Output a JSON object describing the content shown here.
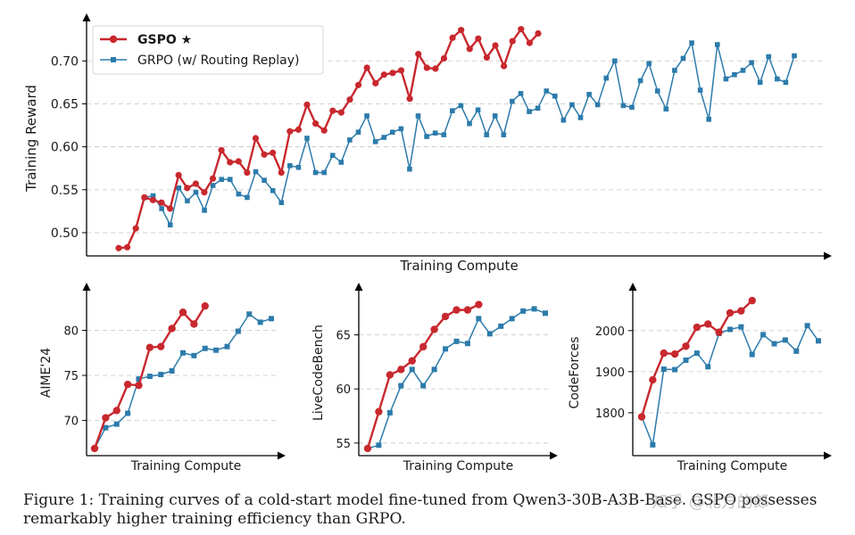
{
  "colors": {
    "gspo": "#c8282e",
    "grpo": "#2c7bab",
    "grid": "#cccccc",
    "axis": "#000000"
  },
  "legend": {
    "gspo": "GSPO ★",
    "grpo": "GRPO (w/ Routing Replay)"
  },
  "caption": "Figure 1: Training curves of a cold-start model fine-tuned from Qwen3-30B-A3B-Base. GSPO possesses remarkably higher training efficiency than GRPO.",
  "watermark": "知乎 @北方的郎",
  "chart_data": [
    {
      "id": "main",
      "type": "line",
      "xlabel": "Training Compute",
      "ylabel": "Training Reward",
      "ylim": [
        0.475,
        0.745
      ],
      "yticks": [
        0.5,
        0.55,
        0.6,
        0.65,
        0.7
      ],
      "ytick_labels": [
        "0.50",
        "0.55",
        "0.60",
        "0.65",
        "0.70"
      ],
      "grid": true,
      "legend": "top-left",
      "series": [
        {
          "name": "GSPO ★",
          "key": "gspo",
          "values": [
            0.482,
            0.483,
            0.505,
            0.541,
            0.538,
            0.535,
            0.528,
            0.567,
            0.552,
            0.557,
            0.547,
            0.563,
            0.596,
            0.582,
            0.583,
            0.57,
            0.61,
            0.591,
            0.593,
            0.57,
            0.618,
            0.62,
            0.649,
            0.627,
            0.619,
            0.642,
            0.64,
            0.655,
            0.672,
            0.692,
            0.674,
            0.684,
            0.686,
            0.689,
            0.656,
            0.708,
            0.692,
            0.691,
            0.703,
            0.727,
            0.736,
            0.714,
            0.726,
            0.704,
            0.718,
            0.694,
            0.723,
            0.737,
            0.721,
            0.732
          ]
        },
        {
          "name": "GRPO (w/ Routing Replay)",
          "key": "grpo",
          "values": [
            0.541,
            0.543,
            0.528,
            0.509,
            0.552,
            0.537,
            0.547,
            0.526,
            0.555,
            0.562,
            0.562,
            0.545,
            0.541,
            0.571,
            0.561,
            0.549,
            0.535,
            0.578,
            0.576,
            0.61,
            0.57,
            0.57,
            0.59,
            0.582,
            0.608,
            0.617,
            0.636,
            0.606,
            0.611,
            0.617,
            0.621,
            0.574,
            0.636,
            0.612,
            0.616,
            0.614,
            0.642,
            0.648,
            0.627,
            0.643,
            0.614,
            0.636,
            0.614,
            0.653,
            0.662,
            0.641,
            0.645,
            0.665,
            0.659,
            0.631,
            0.649,
            0.634,
            0.661,
            0.649,
            0.68,
            0.7,
            0.648,
            0.646,
            0.677,
            0.697,
            0.665,
            0.644,
            0.689,
            0.703,
            0.721,
            0.666,
            0.632,
            0.719,
            0.679,
            0.684,
            0.689,
            0.698,
            0.675,
            0.705,
            0.679,
            0.675,
            0.706
          ]
        }
      ]
    },
    {
      "id": "aime",
      "type": "line",
      "xlabel": "Training Compute",
      "ylabel": "AIME'24",
      "ylim": [
        66.3,
        84.3
      ],
      "yticks": [
        70,
        75,
        80
      ],
      "ytick_labels": [
        "70",
        "75",
        "80"
      ],
      "grid": true,
      "series": [
        {
          "name": "GSPO ★",
          "key": "gspo",
          "values": [
            66.9,
            70.3,
            71.1,
            74.0,
            73.9,
            78.1,
            78.2,
            80.2,
            82.0,
            80.7,
            82.7
          ]
        },
        {
          "name": "GRPO (w/ Routing Replay)",
          "key": "grpo",
          "values": [
            66.9,
            69.2,
            69.6,
            70.8,
            74.6,
            74.9,
            75.1,
            75.5,
            77.5,
            77.2,
            78.0,
            77.8,
            78.2,
            79.9,
            81.8,
            80.9,
            81.3
          ]
        }
      ]
    },
    {
      "id": "lcb",
      "type": "line",
      "xlabel": "Training Compute",
      "ylabel": "LiveCodeBench",
      "ylim": [
        54.0,
        69.0
      ],
      "yticks": [
        55,
        60,
        65
      ],
      "ytick_labels": [
        "55",
        "60",
        "65"
      ],
      "grid": true,
      "series": [
        {
          "name": "GSPO ★",
          "key": "gspo",
          "values": [
            54.5,
            57.9,
            61.3,
            61.8,
            62.6,
            63.9,
            65.5,
            66.7,
            67.3,
            67.3,
            67.8
          ]
        },
        {
          "name": "GRPO (w/ Routing Replay)",
          "key": "grpo",
          "values": [
            54.5,
            54.8,
            57.8,
            60.3,
            61.8,
            60.3,
            61.8,
            63.7,
            64.4,
            64.2,
            66.5,
            65.1,
            65.8,
            66.5,
            67.2,
            67.4,
            67.0
          ]
        }
      ]
    },
    {
      "id": "cf",
      "type": "line",
      "xlabel": "Training Compute",
      "ylabel": "CodeForces",
      "ylim": [
        1700,
        2095
      ],
      "yticks": [
        1800,
        1900,
        2000
      ],
      "ytick_labels": [
        "1800",
        "1900",
        "2000"
      ],
      "grid": true,
      "series": [
        {
          "name": "GSPO ★",
          "key": "gspo",
          "values": [
            1790,
            1880,
            1945,
            1943,
            1962,
            2008,
            2016,
            1996,
            2043,
            2048,
            2073
          ]
        },
        {
          "name": "GRPO (w/ Routing Replay)",
          "key": "grpo",
          "values": [
            1790,
            1722,
            1906,
            1905,
            1928,
            1945,
            1912,
            1993,
            2003,
            2009,
            1942,
            1990,
            1968,
            1977,
            1950,
            2012,
            1975
          ]
        }
      ]
    }
  ]
}
